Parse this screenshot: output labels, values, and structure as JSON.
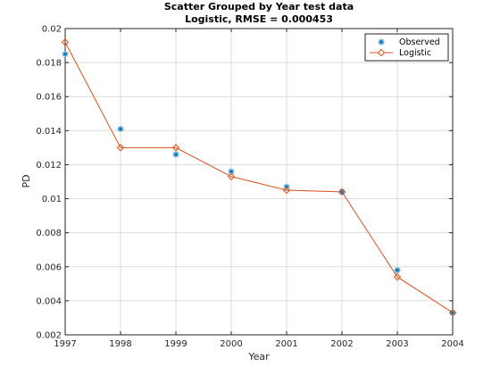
{
  "chart_data": {
    "type": "line",
    "title": "Scatter Grouped by Year test data",
    "subtitle": "Logistic, RMSE = 0.000453",
    "xlabel": "Year",
    "ylabel": "PD",
    "xlim": [
      1997,
      2004
    ],
    "ylim": [
      0.002,
      0.02
    ],
    "x": [
      1997,
      1998,
      1999,
      2000,
      2001,
      2002,
      2003,
      2004
    ],
    "x_ticks": [
      "1997",
      "1998",
      "1999",
      "2000",
      "2001",
      "2002",
      "2003",
      "2004"
    ],
    "y_ticks": [
      "0.002",
      "0.004",
      "0.006",
      "0.008",
      "0.01",
      "0.012",
      "0.014",
      "0.016",
      "0.018",
      "0.02"
    ],
    "grid": true,
    "legend_position": "top-right",
    "series": [
      {
        "name": "Observed",
        "style": "scatter",
        "marker": "asterisk",
        "color": "#0072BD",
        "values": [
          0.0185,
          0.0141,
          0.0126,
          0.0116,
          0.0107,
          0.0104,
          0.0058,
          0.0033
        ]
      },
      {
        "name": "Logistic",
        "style": "line",
        "marker": "diamond",
        "color": "#D95319",
        "values": [
          0.0192,
          0.013,
          0.013,
          0.0113,
          0.0105,
          0.0104,
          0.0054,
          0.0033
        ]
      }
    ]
  }
}
